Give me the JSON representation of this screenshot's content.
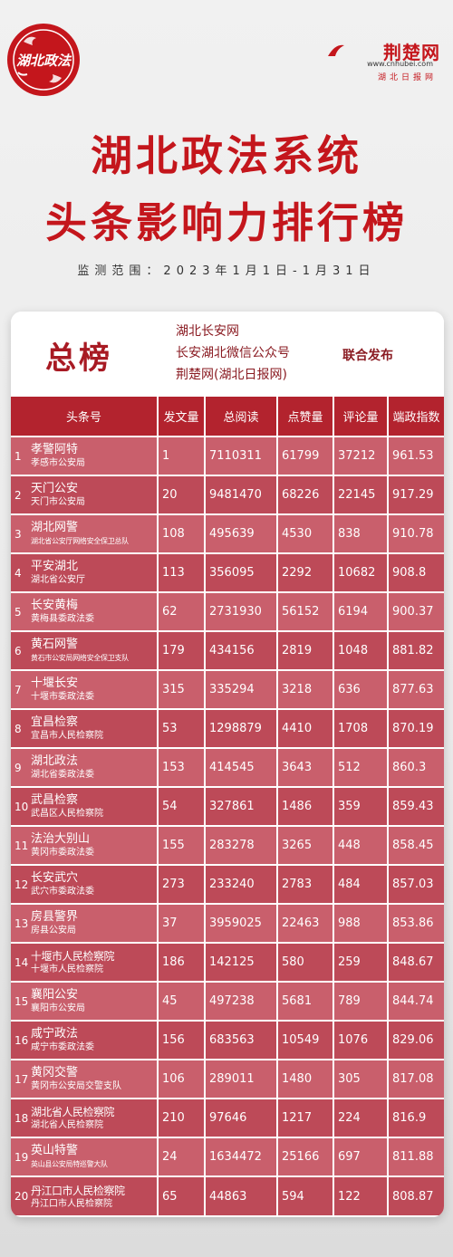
{
  "logo": {
    "text": "湖北政法"
  },
  "brand": {
    "name": "荆楚网",
    "url": "www.cnhubei.com",
    "sub": "湖北日报网"
  },
  "header": {
    "title_line1": "湖北政法系统",
    "title_line2": "头条影响力排行榜",
    "monitor": "监测范围：2023年1月1日-1月31日"
  },
  "card": {
    "title": "总榜",
    "sources": [
      "湖北长安网",
      "长安湖北微信公众号",
      "荆楚网(湖北日报网)"
    ],
    "joint": "联合发布"
  },
  "table": {
    "headers": [
      "头条号",
      "发文量",
      "总阅读",
      "点赞量",
      "评论量",
      "端政指数"
    ],
    "rows": [
      {
        "rank": "1",
        "name": "孝警阿特",
        "org": "孝感市公安局",
        "posts": "1",
        "reads": "7110311",
        "likes": "61799",
        "comments": "37212",
        "index": "961.53"
      },
      {
        "rank": "2",
        "name": "天门公安",
        "org": "天门市公安局",
        "posts": "20",
        "reads": "9481470",
        "likes": "68226",
        "comments": "22145",
        "index": "917.29"
      },
      {
        "rank": "3",
        "name": "湖北网警",
        "org": "湖北省公安厅网络安全保卫总队",
        "posts": "108",
        "reads": "495639",
        "likes": "4530",
        "comments": "838",
        "index": "910.78"
      },
      {
        "rank": "4",
        "name": "平安湖北",
        "org": "湖北省公安厅",
        "posts": "113",
        "reads": "356095",
        "likes": "2292",
        "comments": "10682",
        "index": "908.8"
      },
      {
        "rank": "5",
        "name": "长安黄梅",
        "org": "黄梅县委政法委",
        "posts": "62",
        "reads": "2731930",
        "likes": "56152",
        "comments": "6194",
        "index": "900.37"
      },
      {
        "rank": "6",
        "name": "黄石网警",
        "org": "黄石市公安局网络安全保卫支队",
        "posts": "179",
        "reads": "434156",
        "likes": "2819",
        "comments": "1048",
        "index": "881.82"
      },
      {
        "rank": "7",
        "name": "十堰长安",
        "org": "十堰市委政法委",
        "posts": "315",
        "reads": "335294",
        "likes": "3218",
        "comments": "636",
        "index": "877.63"
      },
      {
        "rank": "8",
        "name": "宜昌检察",
        "org": "宜昌市人民检察院",
        "posts": "53",
        "reads": "1298879",
        "likes": "4410",
        "comments": "1708",
        "index": "870.19"
      },
      {
        "rank": "9",
        "name": "湖北政法",
        "org": "湖北省委政法委",
        "posts": "153",
        "reads": "414545",
        "likes": "3643",
        "comments": "512",
        "index": "860.3"
      },
      {
        "rank": "10",
        "name": "武昌检察",
        "org": "武昌区人民检察院",
        "posts": "54",
        "reads": "327861",
        "likes": "1486",
        "comments": "359",
        "index": "859.43"
      },
      {
        "rank": "11",
        "name": "法治大别山",
        "org": "黄冈市委政法委",
        "posts": "155",
        "reads": "283278",
        "likes": "3265",
        "comments": "448",
        "index": "858.45"
      },
      {
        "rank": "12",
        "name": "长安武穴",
        "org": "武穴市委政法委",
        "posts": "273",
        "reads": "233240",
        "likes": "2783",
        "comments": "484",
        "index": "857.03"
      },
      {
        "rank": "13",
        "name": "房县警界",
        "org": "房县公安局",
        "posts": "37",
        "reads": "3959025",
        "likes": "22463",
        "comments": "988",
        "index": "853.86"
      },
      {
        "rank": "14",
        "name": "十堰市人民检察院",
        "org": "十堰市人民检察院",
        "posts": "186",
        "reads": "142125",
        "likes": "580",
        "comments": "259",
        "index": "848.67"
      },
      {
        "rank": "15",
        "name": "襄阳公安",
        "org": "襄阳市公安局",
        "posts": "45",
        "reads": "497238",
        "likes": "5681",
        "comments": "789",
        "index": "844.74"
      },
      {
        "rank": "16",
        "name": "咸宁政法",
        "org": "咸宁市委政法委",
        "posts": "156",
        "reads": "683563",
        "likes": "10549",
        "comments": "1076",
        "index": "829.06"
      },
      {
        "rank": "17",
        "name": "黄冈交警",
        "org": "黄冈市公安局交警支队",
        "posts": "106",
        "reads": "289011",
        "likes": "1480",
        "comments": "305",
        "index": "817.08"
      },
      {
        "rank": "18",
        "name": "湖北省人民检察院",
        "org": "湖北省人民检察院",
        "posts": "210",
        "reads": "97646",
        "likes": "1217",
        "comments": "224",
        "index": "816.9"
      },
      {
        "rank": "19",
        "name": "英山特警",
        "org": "英山县公安局特巡警大队",
        "posts": "24",
        "reads": "1634472",
        "likes": "25166",
        "comments": "697",
        "index": "811.88"
      },
      {
        "rank": "20",
        "name": "丹江口市人民检察院",
        "org": "丹江口市人民检察院",
        "posts": "65",
        "reads": "44863",
        "likes": "594",
        "comments": "122",
        "index": "808.87"
      }
    ]
  },
  "colors": {
    "brand_red": "#c4161c",
    "header_red": "#b3232e",
    "row_light": "#c95f6c",
    "row_dark": "#bd4a58"
  }
}
